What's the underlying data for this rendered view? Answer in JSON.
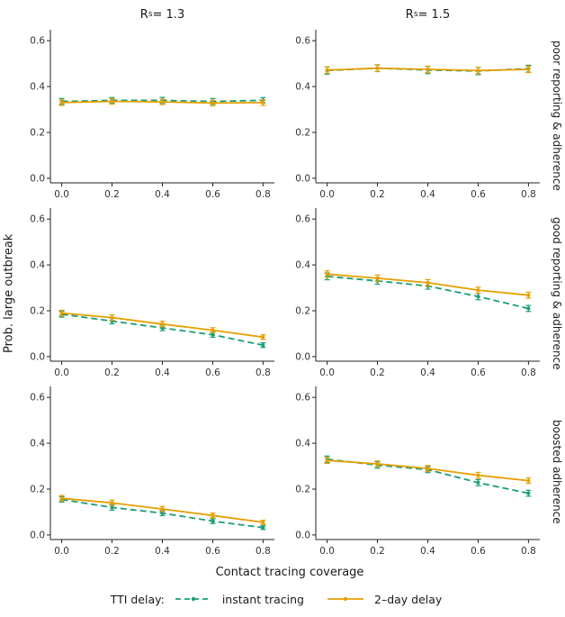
{
  "chart_data": {
    "type": "line",
    "x": [
      0.0,
      0.2,
      0.4,
      0.6,
      0.8
    ],
    "x_ticks": [
      "0.0",
      "0.2",
      "0.4",
      "0.6",
      "0.8"
    ],
    "y_ticks": [
      "0.0",
      "0.2",
      "0.4",
      "0.6"
    ],
    "ylim": [
      0,
      0.6
    ],
    "xlabel": "Contact tracing coverage",
    "ylabel": "Prob. large outbreak",
    "grid": "off",
    "col_titles": [
      {
        "pre": "R",
        "sub": "s",
        "post": " = 1.3"
      },
      {
        "pre": "R",
        "sub": "s",
        "post": " = 1.5"
      }
    ],
    "row_labels": [
      "poor reporting & adherence",
      "good reporting & adherence",
      "boosted adherence"
    ],
    "legend": {
      "title": "TTI delay:",
      "position": "bottom",
      "series": [
        {
          "name": "instant tracing",
          "color": "#1b9e77",
          "dash": true
        },
        {
          "name": "2–day delay",
          "color": "#e69f00",
          "dash": false
        }
      ]
    },
    "panels": [
      {
        "row": "poor reporting & adherence",
        "col": "Rs = 1.3",
        "series": [
          {
            "name": "instant tracing",
            "values": [
              0.335,
              0.34,
              0.34,
              0.335,
              0.34
            ],
            "errors": [
              0.013,
              0.012,
              0.013,
              0.013,
              0.012
            ]
          },
          {
            "name": "2-day delay",
            "values": [
              0.33,
              0.335,
              0.333,
              0.328,
              0.33
            ],
            "errors": [
              0.012,
              0.012,
              0.012,
              0.012,
              0.012
            ]
          }
        ]
      },
      {
        "row": "poor reporting & adherence",
        "col": "Rs = 1.5",
        "series": [
          {
            "name": "instant tracing",
            "values": [
              0.47,
              0.48,
              0.472,
              0.468,
              0.478
            ],
            "errors": [
              0.016,
              0.015,
              0.016,
              0.016,
              0.015
            ]
          },
          {
            "name": "2-day delay",
            "values": [
              0.472,
              0.48,
              0.475,
              0.47,
              0.475
            ],
            "errors": [
              0.014,
              0.014,
              0.014,
              0.014,
              0.014
            ]
          }
        ]
      },
      {
        "row": "good reporting & adherence",
        "col": "Rs = 1.3",
        "series": [
          {
            "name": "instant tracing",
            "values": [
              0.185,
              0.155,
              0.125,
              0.095,
              0.05
            ],
            "errors": [
              0.013,
              0.012,
              0.012,
              0.011,
              0.01
            ]
          },
          {
            "name": "2-day delay",
            "values": [
              0.19,
              0.17,
              0.142,
              0.115,
              0.085
            ],
            "errors": [
              0.012,
              0.012,
              0.012,
              0.011,
              0.01
            ]
          }
        ]
      },
      {
        "row": "good reporting & adherence",
        "col": "Rs = 1.5",
        "series": [
          {
            "name": "instant tracing",
            "values": [
              0.35,
              0.33,
              0.308,
              0.262,
              0.21
            ],
            "errors": [
              0.015,
              0.014,
              0.014,
              0.014,
              0.013
            ]
          },
          {
            "name": "2-day delay",
            "values": [
              0.36,
              0.342,
              0.322,
              0.29,
              0.268
            ],
            "errors": [
              0.014,
              0.014,
              0.014,
              0.013,
              0.013
            ]
          }
        ]
      },
      {
        "row": "boosted adherence",
        "col": "Rs = 1.3",
        "series": [
          {
            "name": "instant tracing",
            "values": [
              0.155,
              0.12,
              0.095,
              0.06,
              0.032
            ],
            "errors": [
              0.012,
              0.012,
              0.011,
              0.01,
              0.008
            ]
          },
          {
            "name": "2-day delay",
            "values": [
              0.16,
              0.14,
              0.113,
              0.085,
              0.055
            ],
            "errors": [
              0.012,
              0.012,
              0.011,
              0.01,
              0.009
            ]
          }
        ]
      },
      {
        "row": "boosted adherence",
        "col": "Rs = 1.5",
        "series": [
          {
            "name": "instant tracing",
            "values": [
              0.33,
              0.305,
              0.285,
              0.228,
              0.182
            ],
            "errors": [
              0.014,
              0.014,
              0.013,
              0.013,
              0.013
            ]
          },
          {
            "name": "2-day delay",
            "values": [
              0.325,
              0.31,
              0.29,
              0.26,
              0.237
            ],
            "errors": [
              0.013,
              0.013,
              0.013,
              0.013,
              0.012
            ]
          }
        ]
      }
    ]
  }
}
